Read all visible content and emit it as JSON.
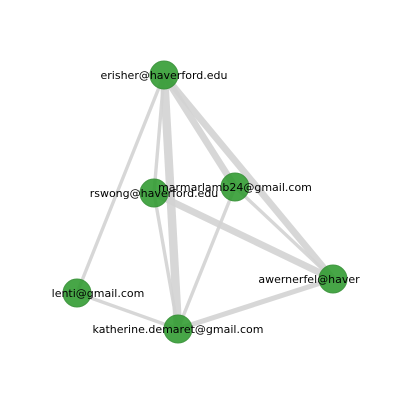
{
  "diagram": {
    "type": "network-graph",
    "colors": {
      "node_fill": "#2e9a2e",
      "edge": "#d3d3d3",
      "label": "#000000",
      "background": "#ffffff"
    },
    "nodes": [
      {
        "id": "erisher",
        "label": "erisher@haverford.edu"
      },
      {
        "id": "rswong",
        "label": "rswong@haverford.edu"
      },
      {
        "id": "marmarlamb24",
        "label": "marmarlamb24@gmail.com"
      },
      {
        "id": "awernerfel",
        "label": "awernerfel@haver"
      },
      {
        "id": "lenti",
        "label": "lenti@gmail.com"
      },
      {
        "id": "katherine",
        "label": "katherine.demaret@gmail.com"
      }
    ],
    "edges": [
      {
        "source": "erisher",
        "target": "katherine",
        "weight": 5
      },
      {
        "source": "erisher",
        "target": "awernerfel",
        "weight": 4
      },
      {
        "source": "erisher",
        "target": "marmarlamb24",
        "weight": 4
      },
      {
        "source": "erisher",
        "target": "rswong",
        "weight": 2
      },
      {
        "source": "erisher",
        "target": "lenti",
        "weight": 2
      },
      {
        "source": "rswong",
        "target": "awernerfel",
        "weight": 4
      },
      {
        "source": "rswong",
        "target": "katherine",
        "weight": 2
      },
      {
        "source": "marmarlamb24",
        "target": "awernerfel",
        "weight": 2
      },
      {
        "source": "marmarlamb24",
        "target": "katherine",
        "weight": 2
      },
      {
        "source": "katherine",
        "target": "awernerfel",
        "weight": 3
      },
      {
        "source": "lenti",
        "target": "katherine",
        "weight": 2
      }
    ]
  }
}
